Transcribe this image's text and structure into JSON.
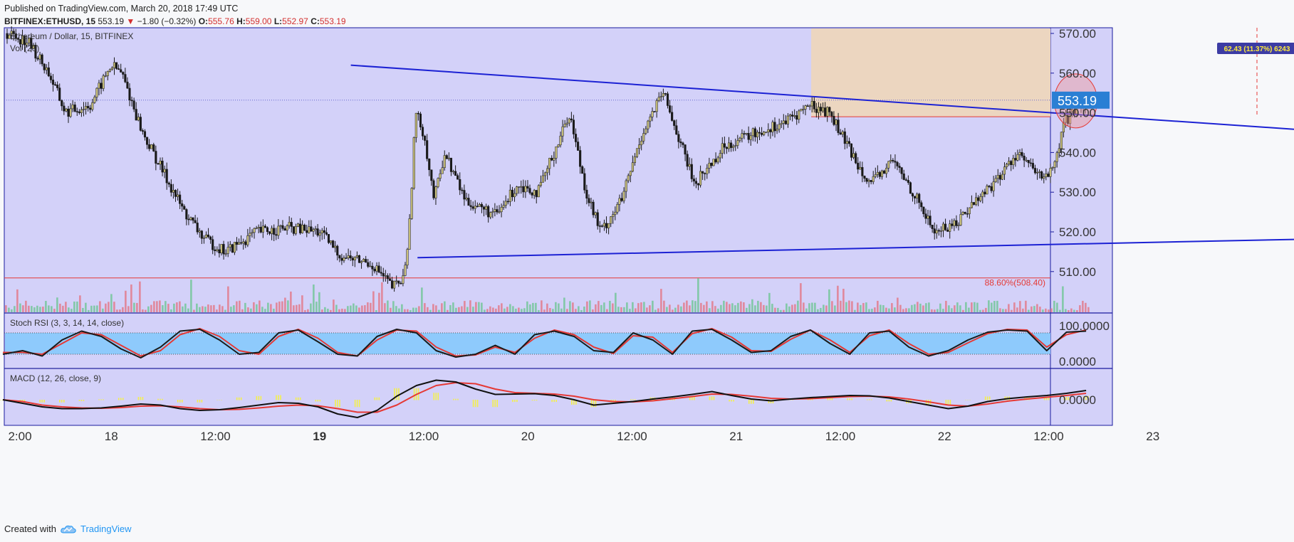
{
  "header": {
    "published": "Published on TradingView.com, March 20, 2018 17:49 UTC",
    "symbol": "BITFINEX:ETHUSD, 15",
    "last": "553.19",
    "change_arrow": "▼",
    "change": "−1.80 (−0.32%)",
    "o_label": "O:",
    "o_val": "555.76",
    "h_label": "H:",
    "h_val": "559.00",
    "l_label": "L:",
    "l_val": "552.97",
    "c_label": "C:",
    "c_val": "553.19"
  },
  "footer": {
    "created_with": "Created with",
    "brand": "TradingView",
    "brand_icon": "tradingview-cloud-icon"
  },
  "colors": {
    "pane_bg": "#d3d1f9",
    "border": "#1a1a9e",
    "trendline": "#1c22d4",
    "rsi_band": "#8ecafc",
    "target_box": "#ecd6c0",
    "red_line": "#e53935",
    "up_candle": "#c9c07a",
    "down_candle": "#1a1a1a",
    "price_tag": "#2a7fd4"
  },
  "chart_data": [
    {
      "type": "candlestick",
      "title": "Ethereum / Dollar, 15, BITFINEX",
      "indicator_label": "Vol (20)",
      "price_axis": [
        "570.00",
        "560.00",
        "553.19",
        "550.00",
        "540.00",
        "530.00",
        "520.00",
        "510.00"
      ],
      "ylim": [
        502,
        572
      ],
      "last_price": 553.19,
      "time_labels": [
        "2:00",
        "18",
        "12:00",
        "19",
        "12:00",
        "20",
        "12:00",
        "21",
        "12:00",
        "22",
        "12:00",
        "23"
      ],
      "close_path": [
        [
          0,
          570
        ],
        [
          0.1,
          568
        ],
        [
          0.2,
          560
        ],
        [
          0.28,
          550
        ],
        [
          0.4,
          552
        ],
        [
          0.5,
          562
        ],
        [
          0.55,
          560
        ],
        [
          0.65,
          545
        ],
        [
          0.75,
          535
        ],
        [
          0.85,
          525
        ],
        [
          0.95,
          518
        ],
        [
          1.05,
          515
        ],
        [
          1.2,
          520
        ],
        [
          1.35,
          521
        ],
        [
          1.5,
          520
        ],
        [
          1.6,
          514
        ],
        [
          1.75,
          512
        ],
        [
          1.85,
          506
        ],
        [
          1.9,
          508
        ],
        [
          1.93,
          520
        ],
        [
          1.96,
          550
        ],
        [
          2.0,
          545
        ],
        [
          2.05,
          528
        ],
        [
          2.1,
          540
        ],
        [
          2.2,
          528
        ],
        [
          2.35,
          524
        ],
        [
          2.45,
          532
        ],
        [
          2.55,
          530
        ],
        [
          2.7,
          550
        ],
        [
          2.78,
          530
        ],
        [
          2.85,
          520
        ],
        [
          2.95,
          528
        ],
        [
          3.05,
          545
        ],
        [
          3.15,
          555
        ],
        [
          3.3,
          532
        ],
        [
          3.45,
          542
        ],
        [
          3.6,
          545
        ],
        [
          3.75,
          548
        ],
        [
          3.85,
          552
        ],
        [
          3.95,
          550
        ],
        [
          4.05,
          540
        ],
        [
          4.15,
          532
        ],
        [
          4.25,
          538
        ],
        [
          4.35,
          530
        ],
        [
          4.45,
          520
        ],
        [
          4.55,
          522
        ],
        [
          4.65,
          528
        ],
        [
          4.75,
          533
        ],
        [
          4.85,
          540
        ],
        [
          4.95,
          534
        ],
        [
          5.02,
          535
        ],
        [
          5.08,
          548
        ],
        [
          5.13,
          550
        ],
        [
          5.18,
          553.19
        ]
      ],
      "trendlines": [
        {
          "name": "upper",
          "from": [
            1.65,
            562
          ],
          "to": [
            7.26,
            542
          ]
        },
        {
          "name": "lower",
          "from": [
            1.97,
            513.5
          ],
          "to": [
            7.18,
            519.2
          ]
        }
      ],
      "target_box": {
        "x_from": 3.86,
        "x_to": 8.25,
        "y_from": 549,
        "y_to": 572,
        "label": "62.43 (11.37%) 6243",
        "x_marker": 6.0
      },
      "horizontal_line": {
        "y": 508.4,
        "label": "88.60%(508.40)"
      },
      "highlight_ellipse": {
        "x": 5.13,
        "y": 553
      }
    },
    {
      "type": "line",
      "title": "Stoch RSI (3, 3, 14, 14, close)",
      "axis_labels": [
        "100.0000",
        "0.0000"
      ],
      "ylim": [
        0,
        100
      ],
      "bands": [
        20,
        80
      ],
      "series": [
        {
          "color": "#1a1a1a",
          "values": [
            20,
            30,
            15,
            60,
            85,
            70,
            35,
            10,
            40,
            85,
            90,
            60,
            20,
            25,
            80,
            88,
            55,
            20,
            15,
            70,
            90,
            80,
            30,
            12,
            20,
            45,
            20,
            75,
            85,
            70,
            30,
            25,
            80,
            60,
            20,
            85,
            90,
            60,
            25,
            30,
            70,
            88,
            50,
            20,
            80,
            85,
            40,
            15,
            30,
            60,
            82,
            88,
            85,
            30,
            82,
            85
          ]
        },
        {
          "color": "#e53935",
          "values": [
            25,
            25,
            20,
            50,
            80,
            75,
            45,
            15,
            30,
            75,
            92,
            70,
            30,
            20,
            70,
            90,
            65,
            25,
            15,
            60,
            88,
            85,
            40,
            15,
            18,
            40,
            25,
            65,
            88,
            75,
            40,
            22,
            72,
            68,
            25,
            78,
            92,
            68,
            30,
            28,
            62,
            88,
            60,
            25,
            72,
            88,
            50,
            20,
            25,
            52,
            78,
            90,
            88,
            40,
            75,
            88
          ]
        }
      ]
    },
    {
      "type": "line",
      "title": "MACD (12, 26, close, 9)",
      "axis_labels": [
        "0.0000"
      ],
      "ylim": [
        -6,
        6
      ],
      "series": [
        {
          "name": "MACD",
          "color": "#111111",
          "values": [
            0,
            -1,
            -2,
            -2.5,
            -2.5,
            -2.3,
            -1.8,
            -1.2,
            -1.5,
            -2.5,
            -3,
            -2.8,
            -2.2,
            -1.5,
            -0.8,
            -1,
            -2,
            -4,
            -5,
            -3,
            1,
            4,
            5.5,
            5,
            3,
            1.5,
            1.6,
            1.7,
            1.2,
            0,
            -1.5,
            -1,
            -0.5,
            0.2,
            0.8,
            1.5,
            2.3,
            1.2,
            0.2,
            -0.3,
            0.2,
            0.6,
            0.9,
            1.2,
            1.1,
            0.5,
            -0.5,
            -1.5,
            -2.5,
            -1.8,
            -0.5,
            0.3,
            0.8,
            1.2,
            1.8,
            2.6
          ]
        },
        {
          "name": "Signal",
          "color": "#e53935",
          "values": [
            0,
            -0.5,
            -1.5,
            -2,
            -2.3,
            -2.4,
            -2.2,
            -1.8,
            -1.7,
            -2,
            -2.5,
            -2.8,
            -2.7,
            -2.3,
            -1.8,
            -1.5,
            -1.7,
            -2.5,
            -3.5,
            -3.5,
            -1.5,
            1.5,
            4,
            4.8,
            4.5,
            3,
            2,
            1.8,
            1.6,
            1,
            0,
            -0.5,
            -0.6,
            -0.3,
            0.3,
            0.9,
            1.6,
            1.5,
            1,
            0.4,
            0.2,
            0.3,
            0.6,
            0.9,
            1,
            0.8,
            0.2,
            -0.6,
            -1.5,
            -1.8,
            -1.2,
            -0.4,
            0.2,
            0.7,
            1.2,
            1.8
          ]
        }
      ]
    }
  ]
}
